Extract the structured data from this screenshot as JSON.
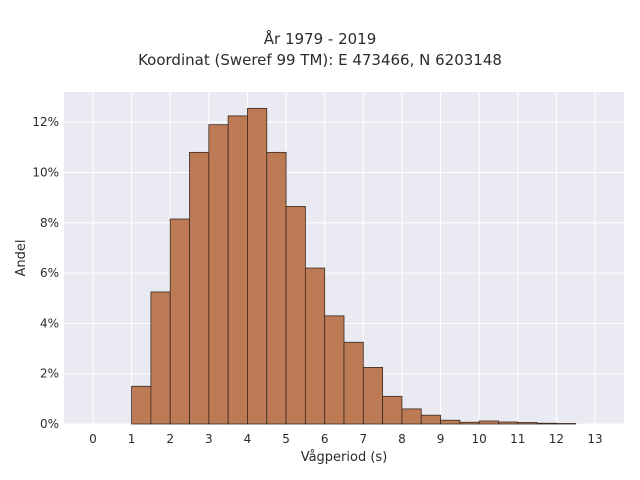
{
  "chart_data": {
    "type": "bar",
    "title": "År 1979 - 2019",
    "subtitle": "Koordinat (Sweref 99 TM): E 473466, N 6203148",
    "xlabel": "Vågperiod (s)",
    "ylabel": "Andel",
    "xlim": [
      -0.75,
      13.75
    ],
    "ylim": [
      0,
      13.2
    ],
    "bin_width": 0.5,
    "x_ticks": [
      0,
      1,
      2,
      3,
      4,
      5,
      6,
      7,
      8,
      9,
      10,
      11,
      12,
      13
    ],
    "x_tick_labels": [
      "0",
      "1",
      "2",
      "3",
      "4",
      "5",
      "6",
      "7",
      "8",
      "9",
      "10",
      "11",
      "12",
      "13"
    ],
    "y_ticks": [
      0,
      2,
      4,
      6,
      8,
      10,
      12
    ],
    "y_tick_labels": [
      "0%",
      "2%",
      "4%",
      "6%",
      "8%",
      "10%",
      "12%"
    ],
    "bins": [
      {
        "start": 1.0,
        "value": 1.5
      },
      {
        "start": 1.5,
        "value": 5.25
      },
      {
        "start": 2.0,
        "value": 8.15
      },
      {
        "start": 2.5,
        "value": 10.8
      },
      {
        "start": 3.0,
        "value": 11.9
      },
      {
        "start": 3.5,
        "value": 12.25
      },
      {
        "start": 4.0,
        "value": 12.55
      },
      {
        "start": 4.5,
        "value": 10.8
      },
      {
        "start": 5.0,
        "value": 8.65
      },
      {
        "start": 5.5,
        "value": 6.2
      },
      {
        "start": 6.0,
        "value": 4.3
      },
      {
        "start": 6.5,
        "value": 3.25
      },
      {
        "start": 7.0,
        "value": 2.25
      },
      {
        "start": 7.5,
        "value": 1.1
      },
      {
        "start": 8.0,
        "value": 0.6
      },
      {
        "start": 8.5,
        "value": 0.35
      },
      {
        "start": 9.0,
        "value": 0.15
      },
      {
        "start": 9.5,
        "value": 0.07
      },
      {
        "start": 10.0,
        "value": 0.12
      },
      {
        "start": 10.5,
        "value": 0.08
      },
      {
        "start": 11.0,
        "value": 0.06
      },
      {
        "start": 11.5,
        "value": 0.03
      },
      {
        "start": 12.0,
        "value": 0.02
      }
    ],
    "grid": true,
    "legend": false,
    "colors": {
      "bar_fill": "#bc7a55",
      "bar_edge": "#3a2a20",
      "plot_background": "#eaeaf2",
      "grid": "#ffffff"
    }
  }
}
